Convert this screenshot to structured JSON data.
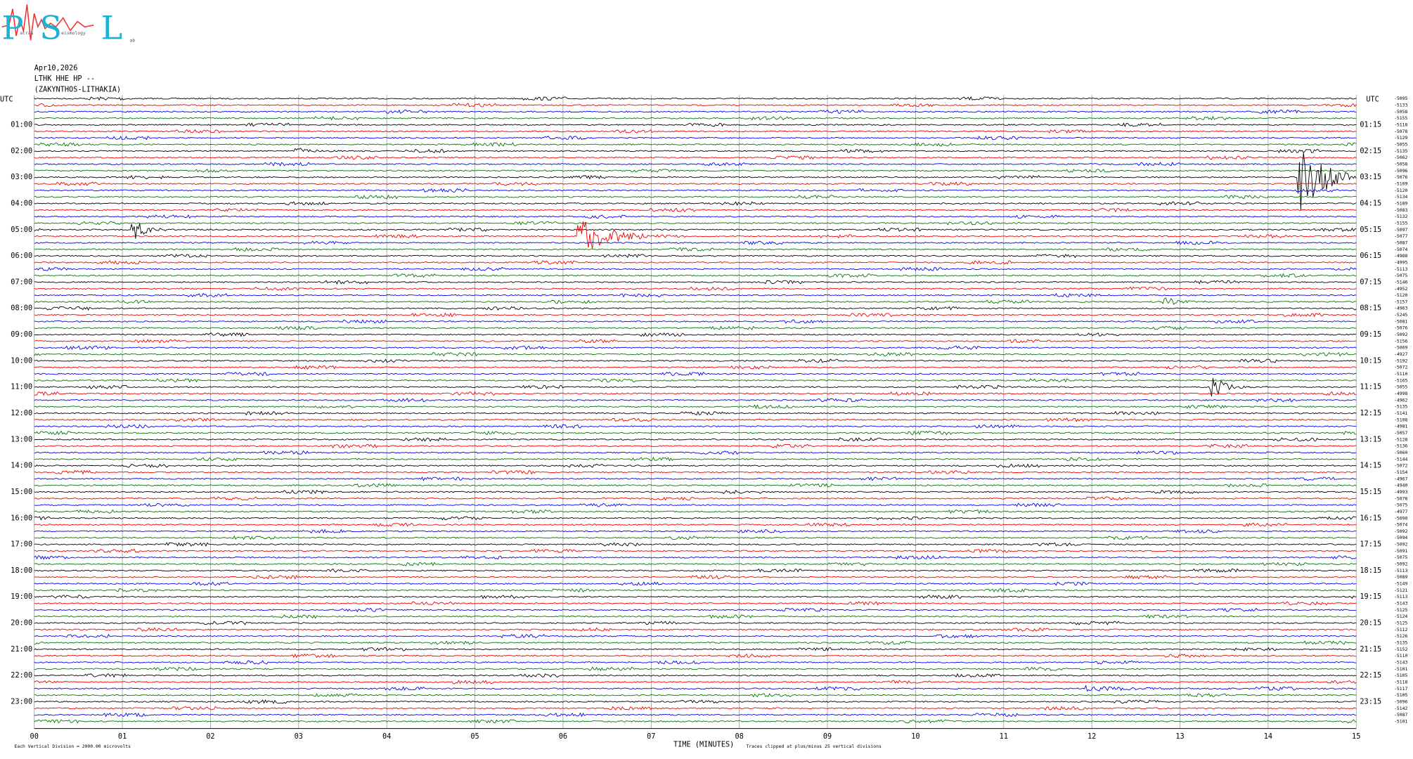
{
  "logo": {
    "letters": [
      "P",
      "S",
      "L"
    ],
    "words": [
      "atras",
      "eismology",
      "ab"
    ]
  },
  "header": {
    "date": "Apr10,2026",
    "station": "LTHK HHE HP --",
    "location": "(ZAKYNTHOS-LITHAKIA)"
  },
  "axis": {
    "left_title": "UTC",
    "right_title": "UTC",
    "left_labels": [
      "01:00",
      "02:00",
      "03:00",
      "04:00",
      "05:00",
      "06:00",
      "07:00",
      "08:00",
      "09:00",
      "10:00",
      "11:00",
      "12:00",
      "13:00",
      "14:00",
      "15:00",
      "16:00",
      "17:00",
      "18:00",
      "19:00",
      "20:00",
      "21:00",
      "22:00",
      "23:00"
    ],
    "right_labels": [
      "01:15",
      "02:15",
      "03:15",
      "04:15",
      "05:15",
      "06:15",
      "07:15",
      "08:15",
      "09:15",
      "10:15",
      "11:15",
      "12:15",
      "13:15",
      "14:15",
      "15:15",
      "16:15",
      "17:15",
      "18:15",
      "19:15",
      "20:15",
      "21:15",
      "22:15",
      "23:15"
    ],
    "x_labels": [
      "00",
      "01",
      "02",
      "03",
      "04",
      "05",
      "06",
      "07",
      "08",
      "09",
      "10",
      "11",
      "12",
      "13",
      "14",
      "15"
    ],
    "x_title": "TIME (MINUTES)"
  },
  "trace_offsets": [
    "-5095",
    "-5133",
    "-5058",
    "-5155",
    "-5118",
    "-5078",
    "-5129",
    "-5055",
    "-5135",
    "-5062",
    "-5058",
    "-5096",
    "-5076",
    "-5109",
    "-5120",
    "-5134",
    "-5189",
    "-5083",
    "-5132",
    "-5155",
    "-5097",
    "-5077",
    "-5087",
    "-5074",
    "-4988",
    "-4995",
    "-5113",
    "-5075",
    "-5146",
    "-4952",
    "-5120",
    "-5157",
    "-4963",
    "-5245",
    "-5081",
    "-5076",
    "-5092",
    "-5156",
    "-5069",
    "-4927",
    "-5192",
    "-5072",
    "-5110",
    "-5165",
    "-5055",
    "-4998",
    "-4962",
    "-5135",
    "-5141",
    "-5108",
    "-4981",
    "-5057",
    "-5128",
    "-5136",
    "-5060",
    "-5144",
    "-5072",
    "-5154",
    "-4967",
    "-4940",
    "-4993",
    "-5078",
    "-5075",
    "-4977",
    "-5090",
    "-5074",
    "-5092",
    "-5094",
    "-5092",
    "-5091",
    "-5075",
    "-5092",
    "-5113",
    "-5089",
    "-5149",
    "-5121",
    "-5113",
    "-5143",
    "-5125",
    "-5124",
    "-5125",
    "-5112",
    "-5126",
    "-5135",
    "-5152",
    "-5110",
    "-5143",
    "-5101",
    "-5105",
    "-5118",
    "-5117",
    "-5105",
    "-5096",
    "-5142",
    "-5087",
    "-5101"
  ],
  "footer": {
    "scale_note": "Each Vertical Division = 2000.00 microvolts",
    "clip_note": "Traces clipped at plus/minus 25 vertical divisions"
  }
}
